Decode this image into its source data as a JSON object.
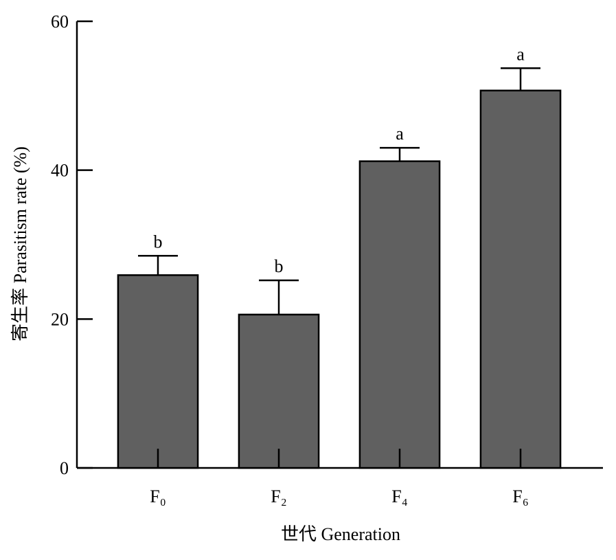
{
  "chart_data": {
    "type": "bar",
    "x_label": "世代 Generation",
    "y_label": "寄生率 Parasitism rate (%)",
    "categories": [
      "F₀",
      "F₂",
      "F₄",
      "F₆"
    ],
    "values": [
      25.9,
      20.6,
      41.2,
      50.7
    ],
    "errors": [
      2.6,
      4.6,
      1.8,
      3.0
    ],
    "letters": [
      "b",
      "b",
      "a",
      "a"
    ],
    "color": "#606060",
    "ylim": [
      0,
      60
    ],
    "yticks": [
      0,
      20,
      40,
      60
    ]
  }
}
